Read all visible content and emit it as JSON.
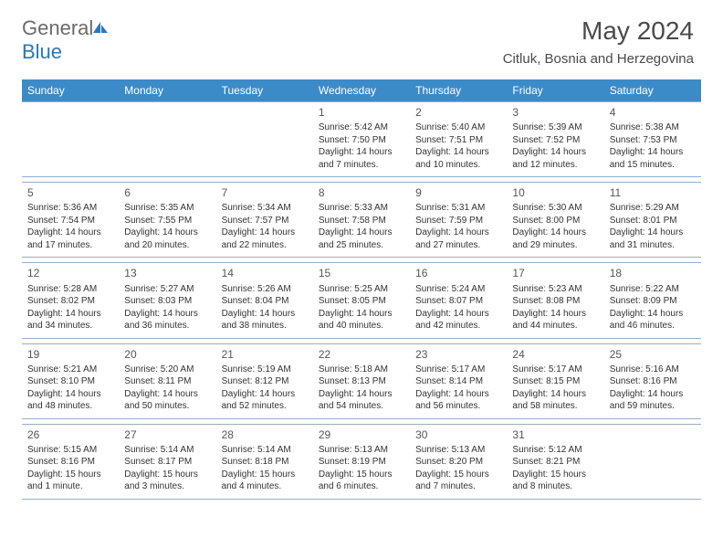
{
  "logo": {
    "text1": "General",
    "text2": "Blue"
  },
  "title": "May 2024",
  "location": "Citluk, Bosnia and Herzegovina",
  "colors": {
    "header_bg": "#3b8bc9",
    "header_fg": "#ffffff",
    "row_border": "#95aeca",
    "text": "#333333",
    "logo_gray": "#6a6a6a",
    "logo_blue": "#2878bd"
  },
  "weekdays": [
    "Sunday",
    "Monday",
    "Tuesday",
    "Wednesday",
    "Thursday",
    "Friday",
    "Saturday"
  ],
  "weeks": [
    [
      null,
      null,
      null,
      {
        "d": "1",
        "sr": "Sunrise: 5:42 AM",
        "ss": "Sunset: 7:50 PM",
        "dl": "Daylight: 14 hours and 7 minutes."
      },
      {
        "d": "2",
        "sr": "Sunrise: 5:40 AM",
        "ss": "Sunset: 7:51 PM",
        "dl": "Daylight: 14 hours and 10 minutes."
      },
      {
        "d": "3",
        "sr": "Sunrise: 5:39 AM",
        "ss": "Sunset: 7:52 PM",
        "dl": "Daylight: 14 hours and 12 minutes."
      },
      {
        "d": "4",
        "sr": "Sunrise: 5:38 AM",
        "ss": "Sunset: 7:53 PM",
        "dl": "Daylight: 14 hours and 15 minutes."
      }
    ],
    [
      {
        "d": "5",
        "sr": "Sunrise: 5:36 AM",
        "ss": "Sunset: 7:54 PM",
        "dl": "Daylight: 14 hours and 17 minutes."
      },
      {
        "d": "6",
        "sr": "Sunrise: 5:35 AM",
        "ss": "Sunset: 7:55 PM",
        "dl": "Daylight: 14 hours and 20 minutes."
      },
      {
        "d": "7",
        "sr": "Sunrise: 5:34 AM",
        "ss": "Sunset: 7:57 PM",
        "dl": "Daylight: 14 hours and 22 minutes."
      },
      {
        "d": "8",
        "sr": "Sunrise: 5:33 AM",
        "ss": "Sunset: 7:58 PM",
        "dl": "Daylight: 14 hours and 25 minutes."
      },
      {
        "d": "9",
        "sr": "Sunrise: 5:31 AM",
        "ss": "Sunset: 7:59 PM",
        "dl": "Daylight: 14 hours and 27 minutes."
      },
      {
        "d": "10",
        "sr": "Sunrise: 5:30 AM",
        "ss": "Sunset: 8:00 PM",
        "dl": "Daylight: 14 hours and 29 minutes."
      },
      {
        "d": "11",
        "sr": "Sunrise: 5:29 AM",
        "ss": "Sunset: 8:01 PM",
        "dl": "Daylight: 14 hours and 31 minutes."
      }
    ],
    [
      {
        "d": "12",
        "sr": "Sunrise: 5:28 AM",
        "ss": "Sunset: 8:02 PM",
        "dl": "Daylight: 14 hours and 34 minutes."
      },
      {
        "d": "13",
        "sr": "Sunrise: 5:27 AM",
        "ss": "Sunset: 8:03 PM",
        "dl": "Daylight: 14 hours and 36 minutes."
      },
      {
        "d": "14",
        "sr": "Sunrise: 5:26 AM",
        "ss": "Sunset: 8:04 PM",
        "dl": "Daylight: 14 hours and 38 minutes."
      },
      {
        "d": "15",
        "sr": "Sunrise: 5:25 AM",
        "ss": "Sunset: 8:05 PM",
        "dl": "Daylight: 14 hours and 40 minutes."
      },
      {
        "d": "16",
        "sr": "Sunrise: 5:24 AM",
        "ss": "Sunset: 8:07 PM",
        "dl": "Daylight: 14 hours and 42 minutes."
      },
      {
        "d": "17",
        "sr": "Sunrise: 5:23 AM",
        "ss": "Sunset: 8:08 PM",
        "dl": "Daylight: 14 hours and 44 minutes."
      },
      {
        "d": "18",
        "sr": "Sunrise: 5:22 AM",
        "ss": "Sunset: 8:09 PM",
        "dl": "Daylight: 14 hours and 46 minutes."
      }
    ],
    [
      {
        "d": "19",
        "sr": "Sunrise: 5:21 AM",
        "ss": "Sunset: 8:10 PM",
        "dl": "Daylight: 14 hours and 48 minutes."
      },
      {
        "d": "20",
        "sr": "Sunrise: 5:20 AM",
        "ss": "Sunset: 8:11 PM",
        "dl": "Daylight: 14 hours and 50 minutes."
      },
      {
        "d": "21",
        "sr": "Sunrise: 5:19 AM",
        "ss": "Sunset: 8:12 PM",
        "dl": "Daylight: 14 hours and 52 minutes."
      },
      {
        "d": "22",
        "sr": "Sunrise: 5:18 AM",
        "ss": "Sunset: 8:13 PM",
        "dl": "Daylight: 14 hours and 54 minutes."
      },
      {
        "d": "23",
        "sr": "Sunrise: 5:17 AM",
        "ss": "Sunset: 8:14 PM",
        "dl": "Daylight: 14 hours and 56 minutes."
      },
      {
        "d": "24",
        "sr": "Sunrise: 5:17 AM",
        "ss": "Sunset: 8:15 PM",
        "dl": "Daylight: 14 hours and 58 minutes."
      },
      {
        "d": "25",
        "sr": "Sunrise: 5:16 AM",
        "ss": "Sunset: 8:16 PM",
        "dl": "Daylight: 14 hours and 59 minutes."
      }
    ],
    [
      {
        "d": "26",
        "sr": "Sunrise: 5:15 AM",
        "ss": "Sunset: 8:16 PM",
        "dl": "Daylight: 15 hours and 1 minute."
      },
      {
        "d": "27",
        "sr": "Sunrise: 5:14 AM",
        "ss": "Sunset: 8:17 PM",
        "dl": "Daylight: 15 hours and 3 minutes."
      },
      {
        "d": "28",
        "sr": "Sunrise: 5:14 AM",
        "ss": "Sunset: 8:18 PM",
        "dl": "Daylight: 15 hours and 4 minutes."
      },
      {
        "d": "29",
        "sr": "Sunrise: 5:13 AM",
        "ss": "Sunset: 8:19 PM",
        "dl": "Daylight: 15 hours and 6 minutes."
      },
      {
        "d": "30",
        "sr": "Sunrise: 5:13 AM",
        "ss": "Sunset: 8:20 PM",
        "dl": "Daylight: 15 hours and 7 minutes."
      },
      {
        "d": "31",
        "sr": "Sunrise: 5:12 AM",
        "ss": "Sunset: 8:21 PM",
        "dl": "Daylight: 15 hours and 8 minutes."
      },
      null
    ]
  ]
}
